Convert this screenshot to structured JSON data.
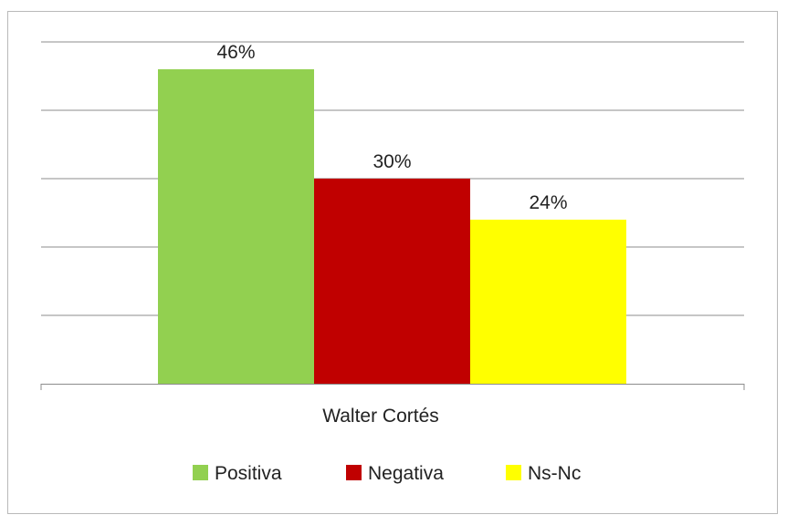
{
  "chart_data": {
    "type": "bar",
    "categories": [
      "Walter Cortés"
    ],
    "series": [
      {
        "name": "Positiva",
        "values": [
          46
        ],
        "data_label": "46%",
        "color": "#92d050"
      },
      {
        "name": "Negativa",
        "values": [
          30
        ],
        "data_label": "30%",
        "color": "#c00000"
      },
      {
        "name": "Ns-Nc",
        "values": [
          24
        ],
        "data_label": "24%",
        "color": "#ffff00"
      }
    ],
    "title": "",
    "xlabel": "",
    "ylabel": "",
    "ylim": [
      0,
      50
    ],
    "y_axis_labels_shown": false,
    "grid": true,
    "legend_position": "bottom"
  }
}
